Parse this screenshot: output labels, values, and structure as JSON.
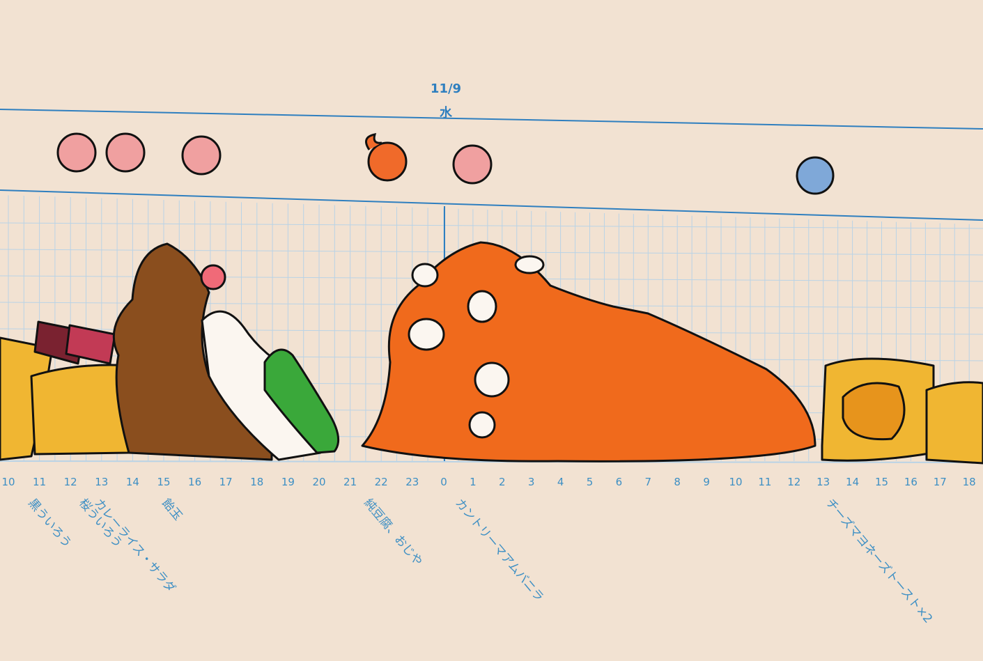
{
  "header": {
    "date": "11/9",
    "weekday": "水"
  },
  "hours": [
    10,
    11,
    12,
    13,
    14,
    15,
    16,
    17,
    18,
    19,
    20,
    21,
    22,
    23,
    0,
    1,
    2,
    3,
    4,
    5,
    6,
    7,
    8,
    9,
    10,
    11,
    12,
    13,
    14,
    15,
    16,
    17,
    18
  ],
  "foods": [
    "黒ういろう",
    "桜ういろう",
    "カレーライス・サラダ",
    "飴玉",
    "純豆腐、おじや",
    "カントリーマアムバニラ",
    "チーズマヨネーズトースト×2"
  ]
}
